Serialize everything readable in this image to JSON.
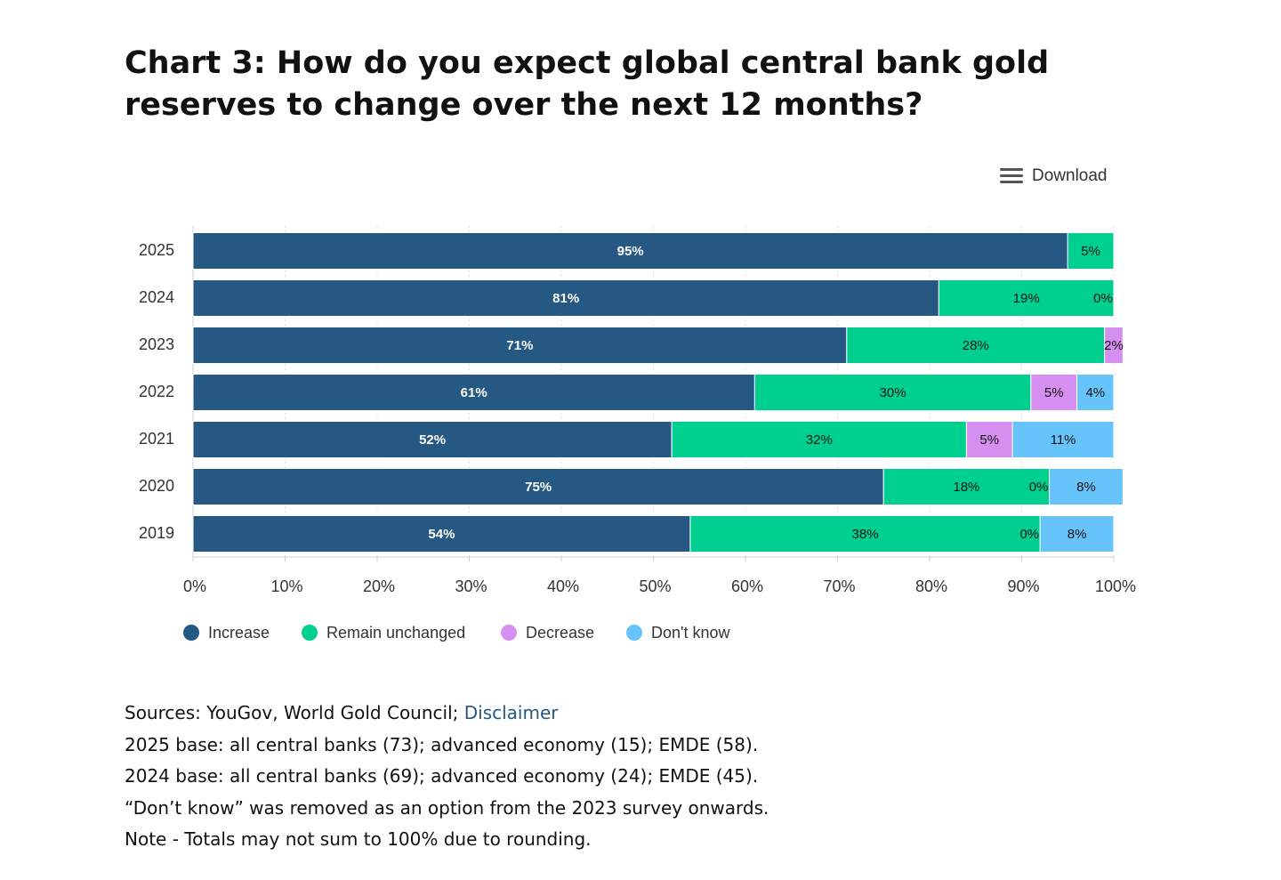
{
  "chart_data": {
    "type": "stacked-barh",
    "title": "Chart 3: How do you expect global central bank gold reserves to change over the next 12 months?",
    "download_label": "Download",
    "categories": [
      "2025",
      "2024",
      "2023",
      "2022",
      "2021",
      "2020",
      "2019"
    ],
    "series": [
      {
        "name": "Increase",
        "color": "#255883",
        "values": [
          95,
          81,
          71,
          61,
          52,
          75,
          54
        ],
        "value_labels": [
          "95%",
          "81%",
          "71%",
          "61%",
          "52%",
          "75%",
          "54%"
        ]
      },
      {
        "name": "Remain unchanged",
        "color": "#00d08f",
        "values": [
          5,
          19,
          28,
          30,
          32,
          18,
          38
        ],
        "value_labels": [
          "5%",
          "19%",
          "28%",
          "30%",
          "32%",
          "18%",
          "38%"
        ]
      },
      {
        "name": "Decrease",
        "color": "#d48ff0",
        "values": [
          null,
          0,
          2,
          5,
          5,
          0,
          0
        ],
        "value_labels": [
          null,
          "0%",
          "2%",
          "5%",
          "5%",
          "0%",
          "0%"
        ]
      },
      {
        "name": "Don't know",
        "color": "#66c4fb",
        "values": [
          null,
          null,
          null,
          4,
          11,
          8,
          8
        ],
        "value_labels": [
          null,
          null,
          null,
          "4%",
          "11%",
          "8%",
          "8%"
        ]
      }
    ],
    "xlim": [
      0,
      100
    ],
    "xticks": [
      {
        "value": 0,
        "label": "0%"
      },
      {
        "value": 10,
        "label": "10%"
      },
      {
        "value": 20,
        "label": "20%"
      },
      {
        "value": 30,
        "label": "30%"
      },
      {
        "value": 40,
        "label": "40%"
      },
      {
        "value": 50,
        "label": "50%"
      },
      {
        "value": 60,
        "label": "60%"
      },
      {
        "value": 70,
        "label": "70%"
      },
      {
        "value": 80,
        "label": "80%"
      },
      {
        "value": 90,
        "label": "90%"
      },
      {
        "value": 100,
        "label": "100%"
      }
    ],
    "grid": true,
    "legend": "bottom-left",
    "notes": {
      "sources": "Sources: YouGov, World Gold Council;",
      "disclaimer": "Disclaimer",
      "lines": [
        "2025 base: all central banks (73); advanced economy (15); EMDE (58).",
        "2024 base: all central banks (69); advanced economy (24); EMDE (45).",
        "“Don’t know” was removed as an option from the 2023 survey onwards.",
        "Note - Totals may not sum to 100% due to rounding."
      ]
    }
  }
}
